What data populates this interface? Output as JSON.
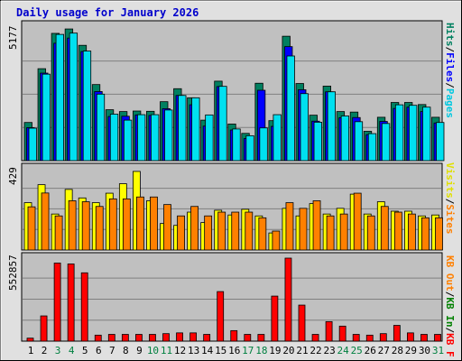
{
  "title": "Daily usage for January 2026",
  "colors": {
    "background": "#e0e0e0",
    "plot_bg": "#c0c0c0",
    "title": "#0000cc",
    "pages": "#00e0f0",
    "files": "#0000ff",
    "hits": "#008060",
    "visits": "#ffff00",
    "sites": "#ff8000",
    "kb_out": "#ff8000",
    "kb_in": "#008000",
    "kb_f": "#ff0000",
    "weekend": "#008040",
    "weekday": "#000000"
  },
  "chart_data": [
    {
      "type": "bar",
      "panel": "hits-files-pages",
      "ymax_label": "5177",
      "ylim": [
        0,
        5177
      ],
      "categories": [
        "1",
        "2",
        "3",
        "4",
        "5",
        "6",
        "7",
        "8",
        "9",
        "10",
        "11",
        "12",
        "13",
        "14",
        "15",
        "16",
        "17",
        "18",
        "19",
        "20",
        "21",
        "22",
        "23",
        "24",
        "25",
        "26",
        "27",
        "28",
        "29",
        "30",
        "31"
      ],
      "weekend": [
        3,
        4,
        10,
        11,
        17,
        18,
        24,
        25,
        31
      ],
      "series": [
        {
          "name": "Hits",
          "legend_label": "Hits",
          "color": "#008060",
          "values": [
            1470,
            3540,
            4900,
            5070,
            4440,
            2930,
            1960,
            1890,
            1910,
            1900,
            2270,
            2770,
            2420,
            1560,
            3060,
            1410,
            1050,
            2980,
            1540,
            4790,
            2970,
            1750,
            2870,
            1890,
            1870,
            1130,
            1670,
            2240,
            2240,
            2160,
            1670
          ]
        },
        {
          "name": "Files",
          "legend_label": "Files",
          "color": "#0000ff",
          "values": [
            1270,
            3370,
            4520,
            4720,
            4200,
            2660,
            1700,
            1710,
            1760,
            1740,
            2000,
            2510,
            2150,
            1330,
            2850,
            1180,
            850,
            2710,
            1320,
            4390,
            2730,
            1520,
            2650,
            1650,
            1660,
            1000,
            1510,
            2010,
            2060,
            1890,
            1450
          ]
        },
        {
          "name": "Pages",
          "legend_label": "Pages",
          "color": "#00e0f0",
          "values": [
            1250,
            3330,
            4860,
            4910,
            4220,
            2560,
            1790,
            1560,
            1770,
            1770,
            1950,
            2510,
            2420,
            1760,
            2860,
            1220,
            960,
            1260,
            1770,
            4030,
            2580,
            1480,
            2650,
            1720,
            1500,
            1040,
            1430,
            2150,
            2130,
            2060,
            1470
          ]
        }
      ]
    },
    {
      "type": "bar",
      "panel": "visits-sites",
      "ymax_label": "429",
      "ylim": [
        0,
        429
      ],
      "categories": [
        "1",
        "2",
        "3",
        "4",
        "5",
        "6",
        "7",
        "8",
        "9",
        "10",
        "11",
        "12",
        "13",
        "14",
        "15",
        "16",
        "17",
        "18",
        "19",
        "20",
        "21",
        "22",
        "23",
        "24",
        "25",
        "26",
        "27",
        "28",
        "29",
        "30",
        "31"
      ],
      "series": [
        {
          "name": "Visits",
          "legend_label": "Visits",
          "color": "#ffff00",
          "values": [
            250,
            345,
            190,
            320,
            275,
            250,
            300,
            350,
            415,
            260,
            140,
            130,
            200,
            145,
            210,
            185,
            215,
            180,
            90,
            220,
            180,
            245,
            190,
            220,
            295,
            190,
            255,
            205,
            205,
            180,
            185
          ]
        },
        {
          "name": "Sites",
          "legend_label": "Sites",
          "color": "#ff8000",
          "values": [
            228,
            301,
            180,
            260,
            255,
            230,
            270,
            270,
            280,
            280,
            240,
            180,
            230,
            180,
            200,
            200,
            200,
            170,
            100,
            250,
            220,
            260,
            180,
            190,
            300,
            180,
            230,
            200,
            190,
            170,
            170
          ]
        }
      ]
    },
    {
      "type": "bar",
      "panel": "kb",
      "ymax_label": "552857",
      "ylim": [
        0,
        552857
      ],
      "categories": [
        "1",
        "2",
        "3",
        "4",
        "5",
        "6",
        "7",
        "8",
        "9",
        "10",
        "11",
        "12",
        "13",
        "14",
        "15",
        "16",
        "17",
        "18",
        "19",
        "20",
        "21",
        "22",
        "23",
        "24",
        "25",
        "26",
        "27",
        "28",
        "29",
        "30",
        "31"
      ],
      "series": [
        {
          "name": "KB F",
          "legend_label": "KB F",
          "color": "#ff0000",
          "values": [
            20000,
            168000,
            520000,
            514000,
            455000,
            40000,
            45000,
            45000,
            45000,
            45000,
            50000,
            55000,
            55000,
            45000,
            330000,
            70000,
            45000,
            45000,
            300000,
            552857,
            240000,
            45000,
            130000,
            100000,
            45000,
            40000,
            50000,
            105000,
            55000,
            45000,
            45000
          ]
        }
      ],
      "legend_extra": [
        "KB In",
        "KB Out"
      ]
    }
  ]
}
